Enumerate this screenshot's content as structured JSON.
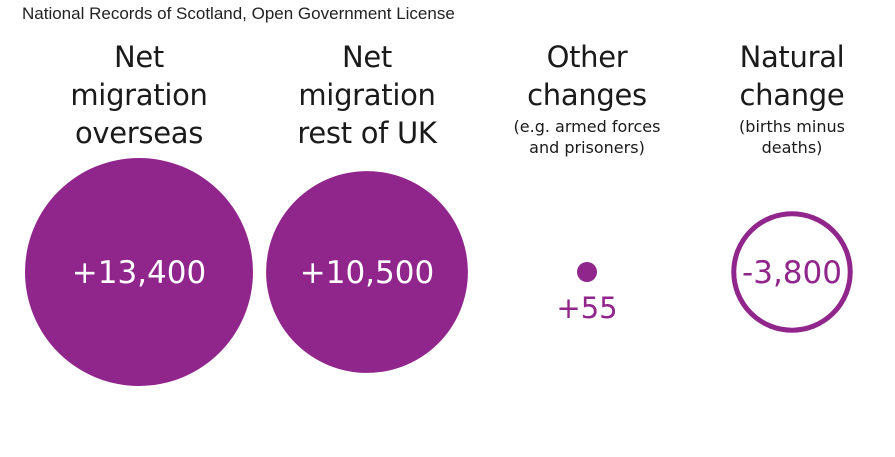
{
  "source": "National Records of Scotland, Open Government License",
  "colors": {
    "purple": "#90268c",
    "label_on_fill": "#ffffff",
    "title_text": "#1a1a1a"
  },
  "chart_data": {
    "type": "bubble",
    "categories": [
      {
        "title_lines": [
          "Net",
          "migration",
          "overseas"
        ],
        "subtitle_lines": [],
        "value": 13400,
        "label": "+13,400",
        "style": "filled"
      },
      {
        "title_lines": [
          "Net",
          "migration",
          "rest of UK"
        ],
        "subtitle_lines": [],
        "value": 10500,
        "label": "+10,500",
        "style": "filled"
      },
      {
        "title_lines": [
          "Other",
          "changes"
        ],
        "subtitle_lines": [
          "(e.g. armed forces",
          "and prisoners)"
        ],
        "value": 55,
        "label": "+55",
        "style": "filled"
      },
      {
        "title_lines": [
          "Natural",
          "change"
        ],
        "subtitle_lines": [
          "(births minus",
          "deaths)"
        ],
        "value": -3800,
        "label": "-3,800",
        "style": "outline"
      }
    ]
  }
}
